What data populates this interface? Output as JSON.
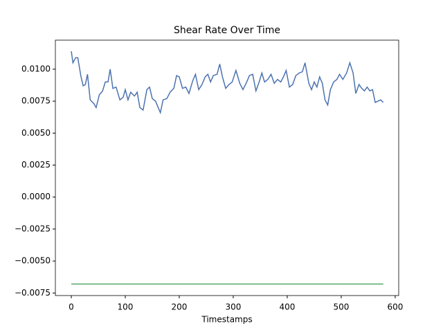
{
  "chart_data": {
    "type": "line",
    "title": "Shear Rate Over Time",
    "x_label": "Timestamps",
    "x": [
      0,
      3,
      8,
      12,
      18,
      22,
      26,
      30,
      35,
      42,
      46,
      52,
      58,
      63,
      68,
      72,
      77,
      83,
      90,
      96,
      100,
      105,
      110,
      117,
      122,
      127,
      133,
      140,
      145,
      150,
      156,
      160,
      165,
      170,
      177,
      183,
      190,
      195,
      200,
      206,
      212,
      218,
      225,
      230,
      236,
      242,
      248,
      253,
      258,
      263,
      270,
      275,
      280,
      286,
      292,
      298,
      305,
      312,
      318,
      325,
      330,
      336,
      342,
      348,
      353,
      358,
      364,
      370,
      376,
      382,
      388,
      393,
      398,
      404,
      410,
      416,
      422,
      428,
      433,
      440,
      445,
      450,
      455,
      460,
      465,
      470,
      475,
      480,
      486,
      492,
      497,
      503,
      510,
      516,
      522,
      527,
      533,
      538,
      543,
      548,
      553,
      558,
      563,
      568,
      573,
      578
    ],
    "series": [
      {
        "color": "#4c72b0",
        "values": [
          0.0114,
          0.0105,
          0.0109,
          0.0109,
          0.0094,
          0.0087,
          0.0088,
          0.0096,
          0.0076,
          0.0073,
          0.007,
          0.008,
          0.0083,
          0.009,
          0.009,
          0.01,
          0.0085,
          0.0086,
          0.0076,
          0.0078,
          0.0084,
          0.0076,
          0.0082,
          0.0079,
          0.0082,
          0.007,
          0.0068,
          0.0084,
          0.0086,
          0.0077,
          0.0075,
          0.0071,
          0.0066,
          0.0076,
          0.0077,
          0.0082,
          0.0085,
          0.0095,
          0.0094,
          0.0085,
          0.0086,
          0.0081,
          0.0091,
          0.0096,
          0.0084,
          0.0088,
          0.0094,
          0.0096,
          0.009,
          0.0095,
          0.0096,
          0.0104,
          0.0094,
          0.0085,
          0.0088,
          0.009,
          0.0099,
          0.0089,
          0.0084,
          0.009,
          0.0095,
          0.0096,
          0.0083,
          0.009,
          0.0097,
          0.009,
          0.0092,
          0.0096,
          0.0089,
          0.0092,
          0.009,
          0.0094,
          0.0099,
          0.0086,
          0.0088,
          0.0095,
          0.0097,
          0.0098,
          0.0105,
          0.0089,
          0.0084,
          0.009,
          0.0086,
          0.0094,
          0.0089,
          0.0076,
          0.0072,
          0.0084,
          0.009,
          0.0092,
          0.0096,
          0.0092,
          0.0097,
          0.0105,
          0.0097,
          0.0081,
          0.0088,
          0.0085,
          0.0083,
          0.0086,
          0.0083,
          0.0084,
          0.0074,
          0.0075,
          0.0076,
          0.0074
        ]
      },
      {
        "color": "#55a868",
        "values": [
          -0.0068,
          -0.0068,
          -0.0068,
          -0.0068,
          -0.0068,
          -0.0068,
          -0.0068,
          -0.0068,
          -0.0068,
          -0.0068,
          -0.0068,
          -0.0068,
          -0.0068,
          -0.0068,
          -0.0068,
          -0.0068,
          -0.0068,
          -0.0068,
          -0.0068,
          -0.0068,
          -0.0068,
          -0.0068,
          -0.0068,
          -0.0068,
          -0.0068,
          -0.0068,
          -0.0068,
          -0.0068,
          -0.0068,
          -0.0068,
          -0.0068,
          -0.0068,
          -0.0068,
          -0.0068,
          -0.0068,
          -0.0068,
          -0.0068,
          -0.0068,
          -0.0068,
          -0.0068,
          -0.0068,
          -0.0068,
          -0.0068,
          -0.0068,
          -0.0068,
          -0.0068,
          -0.0068,
          -0.0068,
          -0.0068,
          -0.0068,
          -0.0068,
          -0.0068,
          -0.0068,
          -0.0068,
          -0.0068,
          -0.0068,
          -0.0068,
          -0.0068,
          -0.0068,
          -0.0068,
          -0.0068,
          -0.0068,
          -0.0068,
          -0.0068,
          -0.0068,
          -0.0068,
          -0.0068,
          -0.0068,
          -0.0068,
          -0.0068,
          -0.0068,
          -0.0068,
          -0.0068,
          -0.0068,
          -0.0068,
          -0.0068,
          -0.0068,
          -0.0068,
          -0.0068,
          -0.0068,
          -0.0068,
          -0.0068,
          -0.0068,
          -0.0068,
          -0.0068,
          -0.0068,
          -0.0068,
          -0.0068,
          -0.0068,
          -0.0068,
          -0.0068,
          -0.0068,
          -0.0068,
          -0.0068,
          -0.0068,
          -0.0068,
          -0.0068,
          -0.0068,
          -0.0068,
          -0.0068,
          -0.0068,
          -0.0068,
          -0.0068,
          -0.0068,
          -0.0068,
          -0.0068
        ]
      }
    ],
    "xlim": [
      -29.5,
      606.5
    ],
    "xticks": [
      0,
      100,
      200,
      300,
      400,
      500,
      600
    ],
    "ylim": [
      -0.0077,
      0.01227
    ],
    "yticks": [
      {
        "value": -0.0075,
        "label": "−0.0075"
      },
      {
        "value": -0.005,
        "label": "−0.0050"
      },
      {
        "value": -0.0025,
        "label": "−0.0025"
      },
      {
        "value": 0,
        "label": "0.0000"
      },
      {
        "value": 0.0025,
        "label": "0.0025"
      },
      {
        "value": 0.005,
        "label": "0.0050"
      },
      {
        "value": 0.0075,
        "label": "0.0075"
      },
      {
        "value": 0.01,
        "label": "0.0100"
      }
    ]
  }
}
